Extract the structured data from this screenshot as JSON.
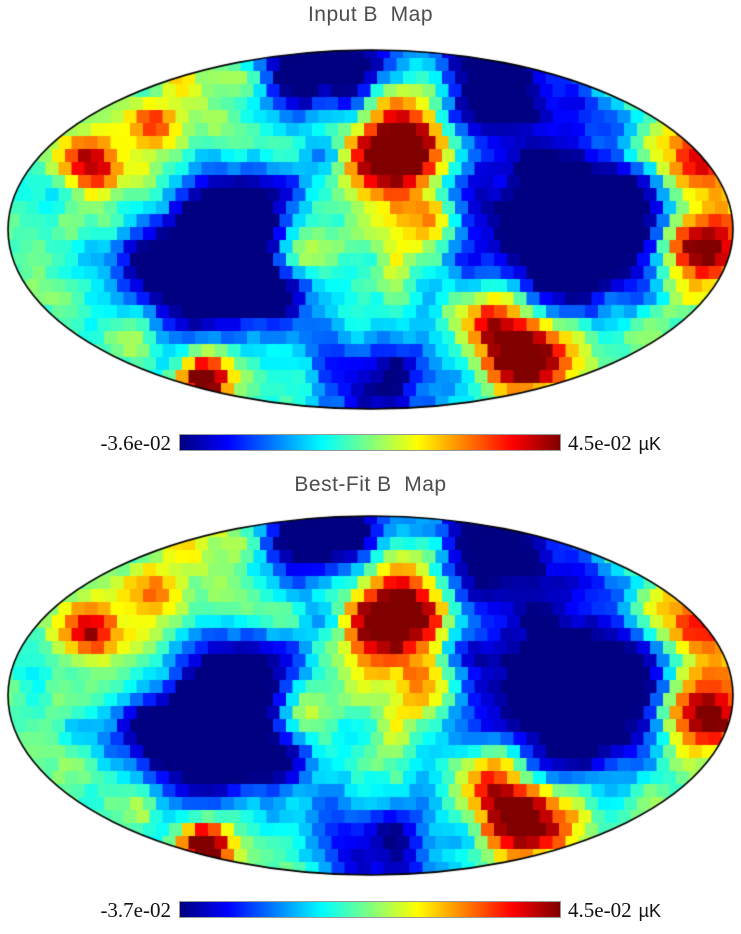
{
  "page": {
    "background": "#ffffff"
  },
  "maps": [
    {
      "title": "Input B  Map",
      "colorbar": {
        "min_label": "-3.6e-02",
        "max_label": "4.5e-02",
        "unit": "µK"
      }
    },
    {
      "title": "Best-Fit B  Map",
      "colorbar": {
        "min_label": "-3.7e-02",
        "max_label": "4.5e-02",
        "unit": "µK"
      }
    }
  ],
  "chart_data": [
    {
      "type": "heatmap",
      "projection": "mollweide",
      "title": "Input B  Map",
      "units": "µK",
      "colormap": "jet",
      "value_range": [
        -0.036,
        0.045
      ],
      "colorbar_labels": [
        "-3.6e-02",
        "4.5e-02 µK"
      ],
      "grid": false,
      "seed": 1234,
      "seed_detail": 77,
      "features_format": "u,v = position in ellipse-normalized coords; sigma = px; amp = value (µK)",
      "features": [
        [
          0.095,
          -0.525,
          34,
          0.058
        ],
        [
          0.05,
          -0.33,
          26,
          0.028
        ],
        [
          -0.112,
          -0.886,
          42,
          -0.048
        ],
        [
          0.385,
          -0.83,
          48,
          -0.052
        ],
        [
          -0.498,
          0.28,
          62,
          -0.056
        ],
        [
          -0.319,
          0.086,
          45,
          -0.034
        ],
        [
          0.606,
          0.031,
          60,
          -0.06
        ],
        [
          0.43,
          -0.09,
          40,
          -0.034
        ],
        [
          0.881,
          -0.331,
          26,
          0.048
        ],
        [
          0.895,
          0.086,
          28,
          0.05
        ],
        [
          -0.468,
          0.847,
          22,
          0.062
        ],
        [
          -0.64,
          0.58,
          24,
          0.038
        ],
        [
          0.43,
          0.7,
          28,
          0.055
        ],
        [
          0.302,
          0.503,
          26,
          0.038
        ],
        [
          -0.774,
          -0.358,
          22,
          0.046
        ],
        [
          -0.594,
          -0.592,
          20,
          0.034
        ],
        [
          -0.194,
          0.081,
          25,
          0.038
        ],
        [
          0.0,
          0.95,
          42,
          -0.036
        ],
        [
          0.164,
          -0.03,
          24,
          0.03
        ]
      ]
    },
    {
      "type": "heatmap",
      "projection": "mollweide",
      "title": "Best-Fit B  Map",
      "units": "µK",
      "colormap": "jet",
      "value_range": [
        -0.037,
        0.045
      ],
      "colorbar_labels": [
        "-3.7e-02",
        "4.5e-02 µK"
      ],
      "grid": false,
      "seed": 1234,
      "seed_detail": 78,
      "features_format": "u,v = position in ellipse-normalized coords; sigma = px; amp = value (µK)",
      "features": [
        [
          0.095,
          -0.525,
          34,
          0.058
        ],
        [
          0.05,
          -0.33,
          26,
          0.028
        ],
        [
          -0.112,
          -0.886,
          42,
          -0.048
        ],
        [
          0.385,
          -0.83,
          48,
          -0.052
        ],
        [
          -0.498,
          0.28,
          62,
          -0.056
        ],
        [
          -0.319,
          0.086,
          45,
          -0.034
        ],
        [
          0.606,
          0.031,
          60,
          -0.06
        ],
        [
          0.43,
          -0.09,
          40,
          -0.034
        ],
        [
          0.881,
          -0.331,
          26,
          0.048
        ],
        [
          0.895,
          0.086,
          28,
          0.05
        ],
        [
          -0.468,
          0.847,
          22,
          0.062
        ],
        [
          -0.64,
          0.58,
          24,
          0.038
        ],
        [
          0.43,
          0.7,
          28,
          0.055
        ],
        [
          0.302,
          0.503,
          26,
          0.038
        ],
        [
          -0.774,
          -0.358,
          22,
          0.046
        ],
        [
          -0.594,
          -0.592,
          20,
          0.034
        ],
        [
          -0.194,
          0.081,
          25,
          0.038
        ],
        [
          0.0,
          0.95,
          42,
          -0.036
        ],
        [
          0.164,
          -0.03,
          24,
          0.03
        ]
      ]
    }
  ]
}
